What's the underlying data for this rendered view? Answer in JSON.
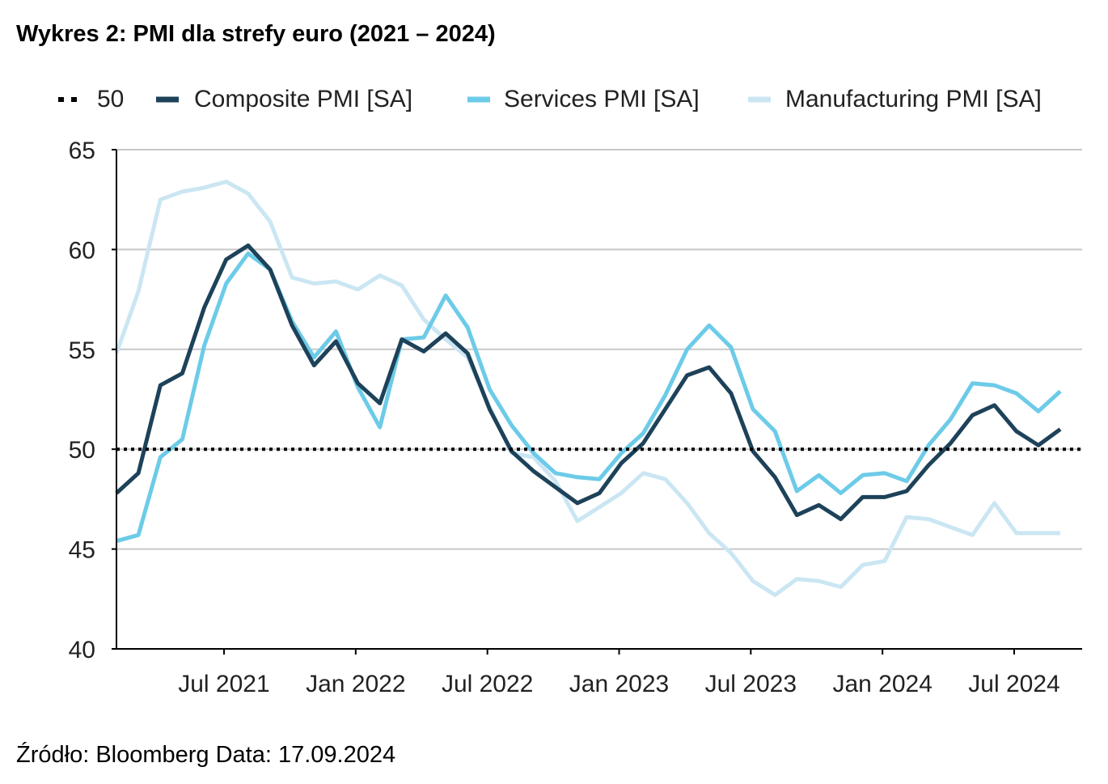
{
  "chart_data": {
    "type": "line",
    "title": "Wykres 2: PMI dla strefy euro (2021 – 2024)",
    "source": "Źródło: Bloomberg Data: 17.09.2024",
    "ylim": [
      40,
      65
    ],
    "yticks": [
      "40",
      "45",
      "50",
      "55",
      "60",
      "65"
    ],
    "xticks": [
      {
        "label": "Jul 2021",
        "month": 6
      },
      {
        "label": "Jan 2022",
        "month": 12
      },
      {
        "label": "Jul 2022",
        "month": 18
      },
      {
        "label": "Jan 2023",
        "month": 24
      },
      {
        "label": "Jul 2023",
        "month": 30
      },
      {
        "label": "Jan 2024",
        "month": 36
      },
      {
        "label": "Jul 2024",
        "month": 42
      }
    ],
    "grid": true,
    "legend_position": "top",
    "x": [
      "2021-01",
      "2021-02",
      "2021-03",
      "2021-04",
      "2021-05",
      "2021-06",
      "2021-07",
      "2021-08",
      "2021-09",
      "2021-10",
      "2021-11",
      "2021-12",
      "2022-01",
      "2022-02",
      "2022-03",
      "2022-04",
      "2022-05",
      "2022-06",
      "2022-07",
      "2022-08",
      "2022-09",
      "2022-10",
      "2022-11",
      "2022-12",
      "2023-01",
      "2023-02",
      "2023-03",
      "2023-04",
      "2023-05",
      "2023-06",
      "2023-07",
      "2023-08",
      "2023-09",
      "2023-10",
      "2023-11",
      "2023-12",
      "2024-01",
      "2024-02",
      "2024-03",
      "2024-04",
      "2024-05",
      "2024-06",
      "2024-07",
      "2024-08"
    ],
    "reference_line": {
      "name": "50",
      "value": 50,
      "color": "#000000"
    },
    "series": [
      {
        "name": "Composite PMI [SA]",
        "color": "#1d4259",
        "values": [
          47.8,
          48.8,
          53.2,
          53.8,
          57.1,
          59.5,
          60.2,
          59.0,
          56.2,
          54.2,
          55.4,
          53.3,
          52.3,
          55.5,
          54.9,
          55.8,
          54.8,
          52.0,
          49.9,
          48.9,
          48.1,
          47.3,
          47.8,
          49.3,
          50.3,
          52.0,
          53.7,
          54.1,
          52.8,
          49.9,
          48.6,
          46.7,
          47.2,
          46.5,
          47.6,
          47.6,
          47.9,
          49.2,
          50.3,
          51.7,
          52.2,
          50.9,
          50.2,
          51.0
        ]
      },
      {
        "name": "Services PMI [SA]",
        "color": "#6ccbe8",
        "values": [
          45.4,
          45.7,
          49.6,
          50.5,
          55.2,
          58.3,
          59.8,
          59.0,
          56.4,
          54.6,
          55.9,
          53.1,
          51.1,
          55.5,
          55.6,
          57.7,
          56.1,
          53.0,
          51.2,
          49.8,
          48.8,
          48.6,
          48.5,
          49.8,
          50.8,
          52.7,
          55.0,
          56.2,
          55.1,
          52.0,
          50.9,
          47.9,
          48.7,
          47.8,
          48.7,
          48.8,
          48.4,
          50.2,
          51.5,
          53.3,
          53.2,
          52.8,
          51.9,
          52.9
        ]
      },
      {
        "name": "Manufacturing PMI [SA]",
        "color": "#cbe6f3",
        "values": [
          54.8,
          57.9,
          62.5,
          62.9,
          63.1,
          63.4,
          62.8,
          61.4,
          58.6,
          58.3,
          58.4,
          58.0,
          58.7,
          58.2,
          56.5,
          55.5,
          54.6,
          52.1,
          49.8,
          49.6,
          48.4,
          46.4,
          47.1,
          47.8,
          48.8,
          48.5,
          47.3,
          45.8,
          44.8,
          43.4,
          42.7,
          43.5,
          43.4,
          43.1,
          44.2,
          44.4,
          46.6,
          46.5,
          46.1,
          45.7,
          47.3,
          45.8,
          45.8,
          45.8
        ]
      }
    ]
  }
}
